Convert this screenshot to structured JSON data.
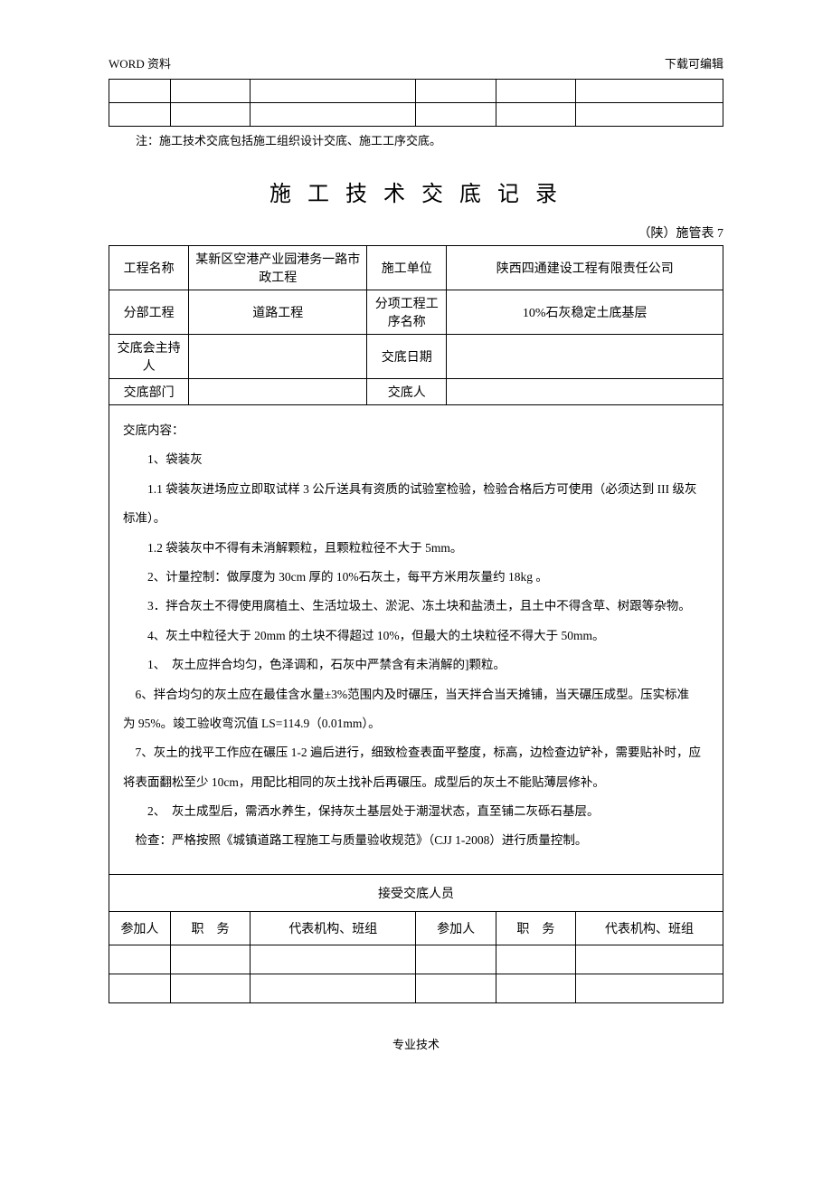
{
  "header": {
    "left": "WORD 资料",
    "right": "下载可编辑"
  },
  "note_text": "注：施工技术交底包括施工组织设计交底、施工工序交底。",
  "title": "施 工 技 术 交 底 记 录",
  "subtitle": "（陕）施管表 7",
  "info": {
    "r1c1": "工程名称",
    "r1c2": "某新区空港产业园港务一路市政工程",
    "r1c3": "施工单位",
    "r1c4": "陕西四通建设工程有限责任公司",
    "r2c1": "分部工程",
    "r2c2": "道路工程",
    "r2c3": "分项工程工序名称",
    "r2c4": "10%石灰稳定土底基层",
    "r3c1": "交底会主持人",
    "r3c2": "",
    "r3c3": "交底日期",
    "r3c4": "",
    "r4c1": "交底部门",
    "r4c2": "",
    "r4c3": "交底人",
    "r4c4": ""
  },
  "content": {
    "heading": "交底内容：",
    "p1": "1、袋装灰",
    "p2": "1.1 袋装灰进场应立即取试样 3 公斤送具有资质的试验室检验，检验合格后方可使用（必须达到 III 级灰",
    "p2b": "标准）。",
    "p3": "1.2 袋装灰中不得有未消解颗粒，且颗粒粒径不大于 5mm。",
    "p4": "2、计量控制：做厚度为 30cm 厚的 10%石灰土，每平方米用灰量约 18kg 。",
    "p5": "3．拌合灰土不得使用腐植土、生活垃圾土、淤泥、冻土块和盐渍土，且土中不得含草、树跟等杂物。",
    "p6": "4、灰土中粒径大于 20mm 的土块不得超过 10%，但最大的土块粒径不得大于 50mm。",
    "p7": "1、　灰土应拌合均匀，色泽调和，石灰中严禁含有未消解的]颗粒。",
    "p8": "6、拌合均匀的灰土应在最佳含水量±3%范围内及时碾压，当天拌合当天摊铺，当天碾压成型。压实标准",
    "p8b": "为 95%。竣工验收弯沉值 LS=114.9（0.01mm）。",
    "p9": "7、灰土的找平工作应在碾压 1-2 遍后进行，细致检查表面平整度，标高，边检查边铲补，需要贴补时，应",
    "p9b": "将表面翻松至少 10cm，用配比相同的灰土找补后再碾压。成型后的灰土不能贴薄层修补。",
    "p10": "2、　灰土成型后，需洒水养生，保持灰土基层处于潮湿状态，直至铺二灰砾石基层。",
    "p11": "检查：严格按照《城镇道路工程施工与质量验收规范》（CJJ 1-2008）进行质量控制。"
  },
  "recv": {
    "title": "接受交底人员",
    "h1": "参加人",
    "h2": "职　务",
    "h3": "代表机构、班组",
    "h4": "参加人",
    "h5": "职　务",
    "h6": "代表机构、班组"
  },
  "footer": "专业技术"
}
